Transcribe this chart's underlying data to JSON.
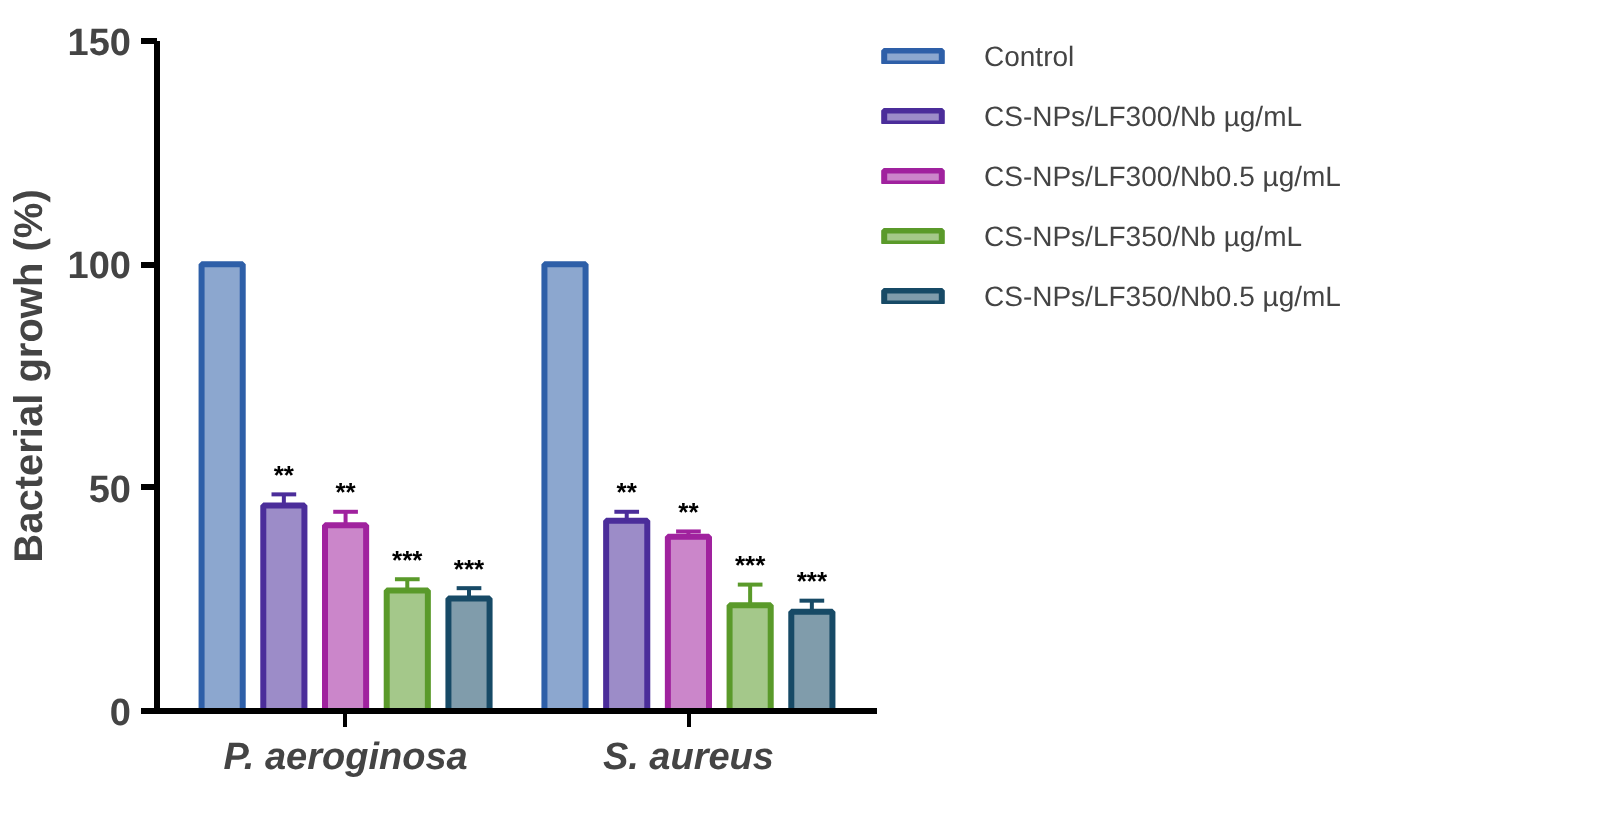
{
  "chart_data": {
    "type": "bar",
    "ylabel": "Bacterial growh (%)",
    "categories": [
      "P. aeroginosa",
      "S. aureus"
    ],
    "ylim": [
      0,
      150
    ],
    "yticks": [
      0,
      50,
      100,
      150
    ],
    "legend": "right",
    "series": [
      {
        "name": "Control",
        "color": "#2e5fa8",
        "values": [
          100,
          100
        ]
      },
      {
        "name": "CS-NPs/LF300/Nb µg/mL",
        "color": "#4b2d9a",
        "values": [
          46,
          42.6
        ],
        "errors": [
          2.5,
          2
        ],
        "value_labels": [
          "**",
          "**"
        ]
      },
      {
        "name": "CS-NPs/LF300/Nb0.5 µg/mL",
        "color": "#a0229e",
        "values": [
          41.6,
          39
        ],
        "errors": [
          3,
          1.2
        ],
        "value_labels": [
          "**",
          "**"
        ]
      },
      {
        "name": "CS-NPs/LF350/Nb µg/mL",
        "color": "#5a9a2a",
        "values": [
          27,
          23.7
        ],
        "errors": [
          2.5,
          4.6
        ],
        "value_labels": [
          "***",
          "***"
        ]
      },
      {
        "name": "CS-NPs/LF350/Nb0.5 µg/mL",
        "color": "#174a66",
        "values": [
          25.2,
          22.2
        ],
        "errors": [
          2.3,
          2.5
        ],
        "value_labels": [
          "***",
          "***"
        ]
      }
    ]
  }
}
